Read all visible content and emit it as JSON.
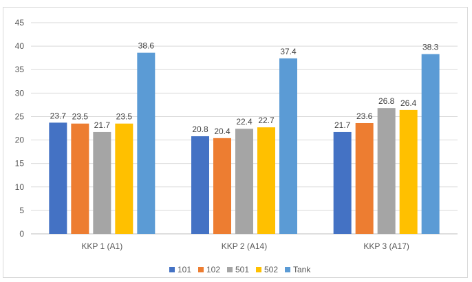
{
  "chart_data": {
    "type": "bar",
    "title": "",
    "xlabel": "",
    "ylabel": "",
    "ylim": [
      0,
      45
    ],
    "yticks": [
      0,
      5,
      10,
      15,
      20,
      25,
      30,
      35,
      40,
      45
    ],
    "grid": true,
    "legend_position": "bottom",
    "categories": [
      "KKP 1 (A1)",
      "KKP 2 (A14)",
      "KKP 3 (A17)"
    ],
    "series": [
      {
        "name": "101",
        "color": "#4472c4",
        "values": [
          23.7,
          20.8,
          21.7
        ]
      },
      {
        "name": "102",
        "color": "#ed7d31",
        "values": [
          23.5,
          20.4,
          23.6
        ]
      },
      {
        "name": "501",
        "color": "#a5a5a5",
        "values": [
          21.7,
          22.4,
          26.8
        ]
      },
      {
        "name": "502",
        "color": "#ffc000",
        "values": [
          23.5,
          22.7,
          26.4
        ]
      },
      {
        "name": "Tank",
        "color": "#5b9bd5",
        "values": [
          38.6,
          37.4,
          38.3
        ]
      }
    ]
  }
}
